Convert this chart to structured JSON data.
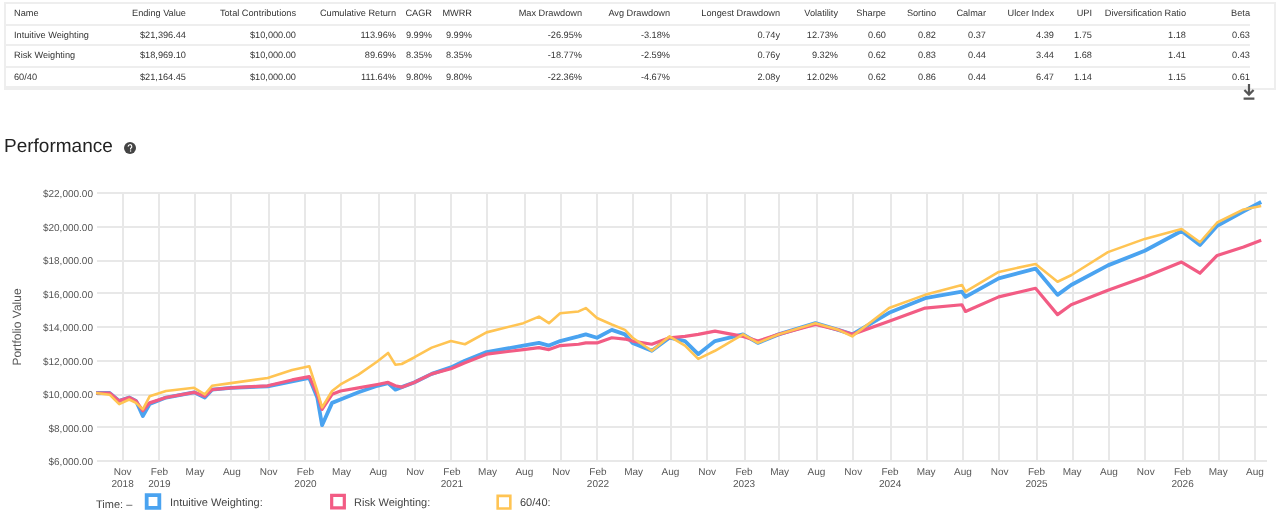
{
  "chart_data": {
    "type": "line",
    "title": "Performance",
    "ylabel": "Portfolio Value",
    "legend_title": "Time: –",
    "legend": "bottom",
    "grid": true,
    "annotations": [
      "Name",
      "Ending Value",
      "Total Contributions",
      "Cumulative Return",
      "CAGR",
      "MWRR",
      "Max Drawdown",
      "Avg Drawdown",
      "Longest Drawdown",
      "Volatility",
      "Sharpe",
      "Sortino",
      "Calmar",
      "Ulcer Index",
      "UPI",
      "Diversification Ratio",
      "Beta",
      "Intuitive Weighting",
      "$21,396.44",
      "$10,000.00",
      "113.96%",
      "9.99%",
      "9.99%",
      "-26.95%",
      "-3.18%",
      "0.74y",
      "12.73%",
      "0.60",
      "0.82",
      "0.37",
      "4.39",
      "1.75",
      "1.18",
      "0.63",
      "Risk Weighting",
      "$18,969.10",
      "$10,000.00",
      "89.69%",
      "8.35%",
      "8.35%",
      "-18.77%",
      "-2.59%",
      "0.76y",
      "9.32%",
      "0.62",
      "0.83",
      "0.44",
      "3.44",
      "1.68",
      "1.41",
      "0.43",
      "60/40",
      "$21,164.45",
      "$10,000.00",
      "111.64%",
      "9.80%",
      "9.80%",
      "-22.36%",
      "-4.67%",
      "2.08y",
      "12.02%",
      "0.62",
      "0.86",
      "0.44",
      "6.47",
      "1.14",
      "1.15",
      "0.61"
    ],
    "x": [
      "2018-08-29",
      "2018-10-02",
      "2018-10-26",
      "2018-11-20",
      "2018-12-07",
      "2018-12-24",
      "2019-01-10",
      "2019-02-20",
      "2019-05-01",
      "2019-05-28",
      "2019-06-15",
      "2019-08-01",
      "2019-11-01",
      "2020-01-01",
      "2020-02-13",
      "2020-03-04",
      "2020-03-16",
      "2020-04-10",
      "2020-05-01",
      "2020-06-15",
      "2020-08-01",
      "2020-08-28",
      "2020-09-15",
      "2020-10-01",
      "2020-11-01",
      "2020-12-15",
      "2021-02-01",
      "2021-03-08",
      "2021-05-01",
      "2021-08-01",
      "2021-09-09",
      "2021-10-04",
      "2021-11-01",
      "2021-12-17",
      "2022-01-04",
      "2022-02-01",
      "2022-03-10",
      "2022-04-12",
      "2022-05-01",
      "2022-06-18",
      "2022-08-01",
      "2022-09-09",
      "2022-10-12",
      "2022-11-23",
      "2023-02-01",
      "2023-03-10",
      "2023-05-01",
      "2023-08-01",
      "2023-09-27",
      "2023-11-01",
      "2024-02-01",
      "2024-05-01",
      "2024-08-01",
      "2024-08-10",
      "2024-11-01",
      "2025-02-01",
      "2025-03-28",
      "2025-05-01",
      "2025-08-01",
      "2025-11-01",
      "2026-02-01",
      "2026-03-19",
      "2026-05-01",
      "2026-07-06",
      "2026-08-19"
    ],
    "series": [
      {
        "name": "Intuitive Weighting:",
        "color": "#4aa3f0",
        "values": [
          10000,
          10000,
          9530,
          9730,
          9530,
          8630,
          9340,
          9730,
          10040,
          9730,
          10200,
          10310,
          10390,
          10700,
          10900,
          9730,
          8080,
          9410,
          9610,
          10040,
          10430,
          10590,
          10200,
          10350,
          10630,
          11140,
          11530,
          11930,
          12440,
          12830,
          12990,
          12830,
          13100,
          13380,
          13500,
          13300,
          13770,
          13500,
          12990,
          12520,
          13300,
          13100,
          12320,
          13100,
          13500,
          12990,
          13500,
          14170,
          13770,
          13500,
          14790,
          15660,
          16050,
          15740,
          16840,
          17430,
          15860,
          16450,
          17620,
          18490,
          19670,
          18840,
          19980,
          20850,
          21400
        ]
      },
      {
        "name": "Risk Weighting:",
        "color": "#f25c84",
        "values": [
          10000,
          10000,
          9530,
          9730,
          9530,
          8940,
          9410,
          9730,
          10040,
          9800,
          10200,
          10310,
          10430,
          10780,
          10980,
          9920,
          9020,
          9920,
          10120,
          10310,
          10510,
          10630,
          10430,
          10350,
          10630,
          11140,
          11450,
          11810,
          12320,
          12590,
          12710,
          12590,
          12830,
          12910,
          12990,
          12990,
          13300,
          13220,
          13100,
          12910,
          13300,
          13380,
          13500,
          13690,
          13380,
          13100,
          13500,
          14090,
          13770,
          13500,
          14280,
          15070,
          15270,
          14870,
          15740,
          16250,
          14680,
          15270,
          16130,
          16920,
          17820,
          17150,
          18210,
          18720,
          19120
        ]
      },
      {
        "name": "60/40:",
        "color": "#ffc453",
        "values": [
          10000,
          9900,
          9335,
          9610,
          9410,
          9020,
          9800,
          10120,
          10310,
          9920,
          10430,
          10590,
          10900,
          11370,
          11600,
          10120,
          9140,
          10120,
          10510,
          11100,
          11880,
          12390,
          11690,
          11730,
          12120,
          12710,
          13100,
          12910,
          13620,
          14170,
          14560,
          14170,
          14760,
          14870,
          15070,
          14480,
          14090,
          13770,
          13300,
          12520,
          13380,
          12830,
          12040,
          12520,
          13500,
          12990,
          13500,
          14170,
          13770,
          13380,
          15070,
          15860,
          16450,
          16050,
          17230,
          17700,
          16640,
          17030,
          18410,
          19200,
          19790,
          19000,
          20180,
          20960,
          21160
        ]
      }
    ],
    "xlim": [
      "2018-08-29",
      "2026-08-31"
    ],
    "xticks": [
      {
        "value": "2018-11-01",
        "label": "Nov 2018"
      },
      {
        "value": "2019-02-01",
        "label": "Feb 2019"
      },
      {
        "value": "2019-05-01",
        "label": "May"
      },
      {
        "value": "2019-08-01",
        "label": "Aug"
      },
      {
        "value": "2019-11-01",
        "label": "Nov"
      },
      {
        "value": "2020-02-01",
        "label": "Feb 2020"
      },
      {
        "value": "2020-05-01",
        "label": "May"
      },
      {
        "value": "2020-08-01",
        "label": "Aug"
      },
      {
        "value": "2020-11-01",
        "label": "Nov"
      },
      {
        "value": "2021-02-01",
        "label": "Feb 2021"
      },
      {
        "value": "2021-05-01",
        "label": "May"
      },
      {
        "value": "2021-08-01",
        "label": "Aug"
      },
      {
        "value": "2021-11-01",
        "label": "Nov"
      },
      {
        "value": "2022-02-01",
        "label": "Feb 2022"
      },
      {
        "value": "2022-05-01",
        "label": "May"
      },
      {
        "value": "2022-08-01",
        "label": "Aug"
      },
      {
        "value": "2022-11-01",
        "label": "Nov"
      },
      {
        "value": "2023-02-01",
        "label": "Feb 2023"
      },
      {
        "value": "2023-05-01",
        "label": "May"
      },
      {
        "value": "2023-08-01",
        "label": "Aug"
      },
      {
        "value": "2023-11-01",
        "label": "Nov"
      },
      {
        "value": "2024-02-01",
        "label": "Feb 2024"
      },
      {
        "value": "2024-05-01",
        "label": "May"
      },
      {
        "value": "2024-08-01",
        "label": "Aug"
      },
      {
        "value": "2024-11-01",
        "label": "Nov"
      },
      {
        "value": "2025-02-01",
        "label": "Feb 2025"
      },
      {
        "value": "2025-05-01",
        "label": "May"
      },
      {
        "value": "2025-08-01",
        "label": "Aug"
      },
      {
        "value": "2025-11-01",
        "label": "Nov"
      },
      {
        "value": "2026-02-01",
        "label": "Feb 2026"
      },
      {
        "value": "2026-05-01",
        "label": "May"
      },
      {
        "value": "2026-08-01",
        "label": "Aug"
      }
    ],
    "ylim": [
      6000,
      22000
    ],
    "yticks": [
      {
        "value": 6000,
        "label": "$6,000.00"
      },
      {
        "value": 8000,
        "label": "$8,000.00"
      },
      {
        "value": 10000,
        "label": "$10,000.00"
      },
      {
        "value": 12000,
        "label": "$12,000.00"
      },
      {
        "value": 14000,
        "label": "$14,000.00"
      },
      {
        "value": 16000,
        "label": "$16,000.00"
      },
      {
        "value": 18000,
        "label": "$18,000.00"
      },
      {
        "value": 20000,
        "label": "$20,000.00"
      },
      {
        "value": 22000,
        "label": "$22,000.00"
      }
    ]
  }
}
